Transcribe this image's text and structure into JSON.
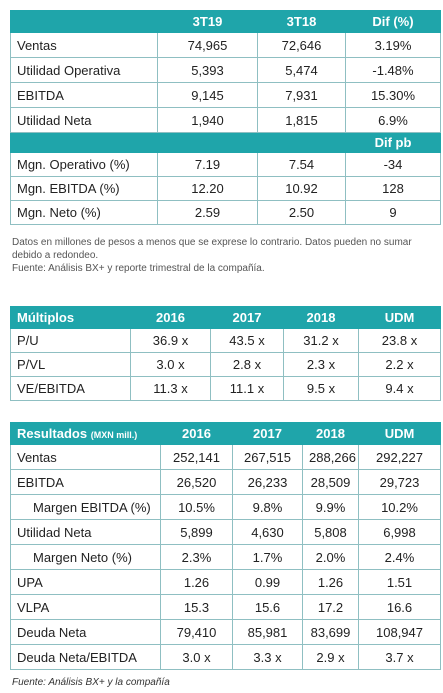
{
  "table1": {
    "columns": [
      "3T19",
      "3T18",
      "Dif (%)"
    ],
    "rows": [
      [
        "Ventas",
        "74,965",
        "72,646",
        "3.19%"
      ],
      [
        "Utilidad Operativa",
        "5,393",
        "5,474",
        "-1.48%"
      ],
      [
        "EBITDA",
        "9,145",
        "7,931",
        "15.30%"
      ],
      [
        "Utilidad Neta",
        "1,940",
        "1,815",
        "6.9%"
      ]
    ],
    "subheader": "Dif pb",
    "rows2": [
      [
        "Mgn. Operativo (%)",
        "7.19",
        "7.54",
        "-34"
      ],
      [
        "Mgn. EBITDA (%)",
        "12.20",
        "10.92",
        "128"
      ],
      [
        "Mgn. Neto (%)",
        "2.59",
        "2.50",
        "9"
      ]
    ]
  },
  "note": "Datos en millones de pesos a menos que se exprese lo contrario. Datos pueden no sumar debido a redondeo.",
  "source": "Fuente: Análisis BX+ y reporte trimestral de la compañía.",
  "table2": {
    "header": [
      "Múltiplos",
      "2016",
      "2017",
      "2018",
      "UDM"
    ],
    "rows": [
      [
        "P/U",
        "36.9 x",
        "43.5 x",
        "31.2 x",
        "23.8 x"
      ],
      [
        "P/VL",
        "3.0 x",
        "2.8 x",
        "2.3 x",
        "2.2 x"
      ],
      [
        "VE/EBITDA",
        "11.3 x",
        "11.1 x",
        "9.5 x",
        "9.4 x"
      ]
    ]
  },
  "table3": {
    "title": "Resultados",
    "unit": "(MXN mill.)",
    "columns": [
      "2016",
      "2017",
      "2018",
      "UDM"
    ],
    "rows": [
      [
        "Ventas",
        "252,141",
        "267,515",
        "288,266",
        "292,227"
      ],
      [
        "EBITDA",
        "26,520",
        "26,233",
        "28,509",
        "29,723"
      ],
      [
        "Margen EBITDA (%)",
        "10.5%",
        "9.8%",
        "9.9%",
        "10.2%"
      ],
      [
        "Utilidad Neta",
        "5,899",
        "4,630",
        "5,808",
        "6,998"
      ],
      [
        "Margen Neto (%)",
        "2.3%",
        "1.7%",
        "2.0%",
        "2.4%"
      ],
      [
        "UPA",
        "1.26",
        "0.99",
        "1.26",
        "1.51"
      ],
      [
        "VLPA",
        "15.3",
        "15.6",
        "17.2",
        "16.6"
      ],
      [
        "Deuda Neta",
        "79,410",
        "85,981",
        "83,699",
        "108,947"
      ],
      [
        "Deuda Neta/EBITDA",
        "3.0 x",
        "3.3 x",
        "2.9 x",
        "3.7 x"
      ]
    ]
  },
  "footer": "Fuente: Análisis BX+ y la compañía"
}
